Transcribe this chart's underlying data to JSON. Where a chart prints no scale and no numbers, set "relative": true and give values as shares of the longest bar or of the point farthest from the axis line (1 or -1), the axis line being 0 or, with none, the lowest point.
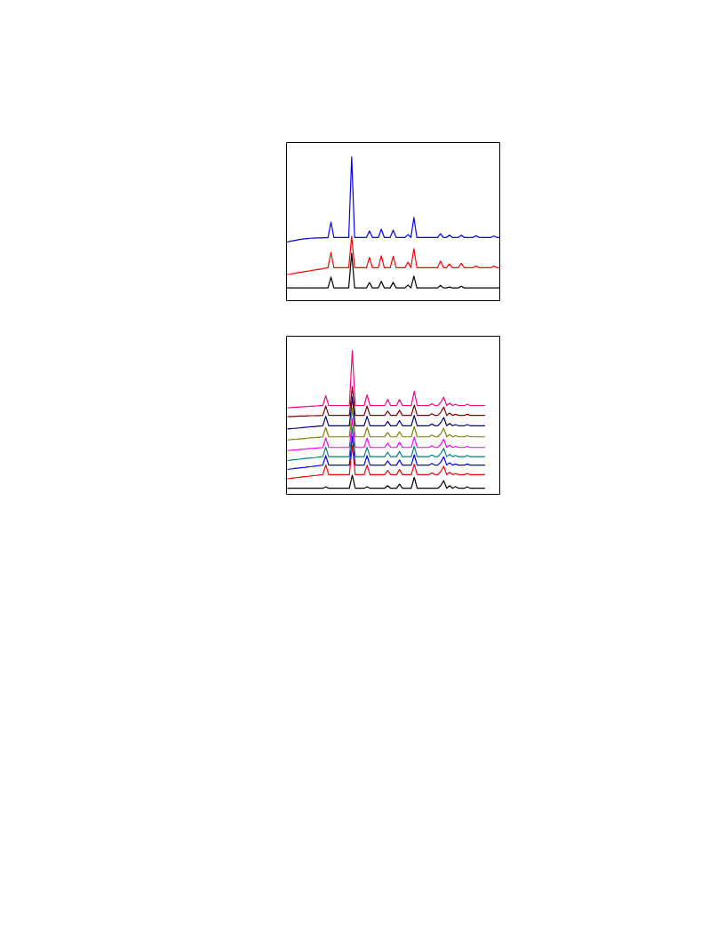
{
  "chart_data": [
    {
      "type": "line",
      "relative": true,
      "categories": [
        null,
        null,
        null,
        null,
        null,
        null,
        null,
        null,
        null,
        null,
        null,
        null,
        null,
        null,
        null,
        null,
        null,
        null,
        null,
        null,
        null,
        null,
        null,
        null,
        null,
        null,
        null,
        null,
        null,
        null,
        null,
        null,
        null,
        null,
        null,
        null,
        null,
        null,
        null,
        null,
        null,
        null,
        null,
        null,
        null,
        null,
        null,
        null,
        null,
        null,
        null,
        null,
        null,
        null,
        null,
        null,
        null,
        null,
        null,
        null,
        null,
        null,
        null,
        null,
        null,
        null,
        null,
        null,
        null,
        null,
        null,
        null,
        null
      ],
      "series": [
        {
          "color": "#000000",
          "values": [
            0.089,
            0.089,
            0.089,
            0.089,
            0.089,
            0.089,
            0.089,
            0.089,
            0.089,
            0.089,
            0.089,
            0.089,
            0.089,
            0.089,
            0.089,
            0.165,
            0.089,
            0.089,
            0.089,
            0.089,
            0.089,
            0.089,
            0.332,
            0.089,
            0.089,
            0.089,
            0.089,
            0.089,
            0.126,
            0.089,
            0.089,
            0.089,
            0.134,
            0.089,
            0.089,
            0.089,
            0.128,
            0.089,
            0.089,
            0.089,
            0.089,
            0.109,
            0.089,
            0.171,
            0.089,
            0.089,
            0.089,
            0.089,
            0.089,
            0.089,
            0.089,
            0.089,
            0.107,
            0.089,
            0.089,
            0.095,
            0.089,
            0.089,
            0.089,
            0.1,
            0.089,
            0.089,
            0.089,
            0.089,
            0.089,
            0.089,
            0.089,
            0.089,
            0.089,
            0.089,
            0.089,
            0.089,
            0.089
          ]
        },
        {
          "color": "#ff0000",
          "values": [
            0.181,
            0.184,
            0.188,
            0.191,
            0.195,
            0.198,
            0.202,
            0.205,
            0.208,
            0.212,
            0.215,
            0.219,
            0.222,
            0.226,
            0.229,
            0.336,
            0.23,
            0.23,
            0.23,
            0.23,
            0.23,
            0.23,
            0.449,
            0.23,
            0.23,
            0.23,
            0.23,
            0.23,
            0.301,
            0.23,
            0.23,
            0.23,
            0.313,
            0.23,
            0.23,
            0.23,
            0.309,
            0.23,
            0.23,
            0.23,
            0.23,
            0.268,
            0.23,
            0.363,
            0.23,
            0.23,
            0.23,
            0.23,
            0.23,
            0.23,
            0.23,
            0.23,
            0.276,
            0.23,
            0.23,
            0.256,
            0.23,
            0.23,
            0.23,
            0.26,
            0.23,
            0.23,
            0.23,
            0.23,
            0.24,
            0.23,
            0.23,
            0.23,
            0.23,
            0.23,
            0.24,
            0.23,
            0.23
          ]
        },
        {
          "color": "#0000ff",
          "values": [
            0.408,
            0.412,
            0.416,
            0.42,
            0.424,
            0.427,
            0.43,
            0.432,
            0.434,
            0.435,
            0.436,
            0.437,
            0.437,
            0.438,
            0.438,
            0.546,
            0.44,
            0.44,
            0.44,
            0.44,
            0.44,
            0.44,
            1,
            0.44,
            0.44,
            0.44,
            0.44,
            0.44,
            0.485,
            0.44,
            0.44,
            0.44,
            0.497,
            0.44,
            0.44,
            0.44,
            0.491,
            0.44,
            0.44,
            0.44,
            0.44,
            0.46,
            0.44,
            0.579,
            0.44,
            0.44,
            0.44,
            0.44,
            0.44,
            0.44,
            0.44,
            0.44,
            0.466,
            0.44,
            0.44,
            0.456,
            0.44,
            0.44,
            0.44,
            0.456,
            0.44,
            0.44,
            0.44,
            0.44,
            0.452,
            0.44,
            0.44,
            0.44,
            0.44,
            0.44,
            0.45,
            0.44,
            0.44
          ]
        }
      ]
    },
    {
      "type": "line",
      "relative": true,
      "categories": [
        null,
        null,
        null,
        null,
        null,
        null,
        null,
        null,
        null,
        null,
        null,
        null,
        null,
        null,
        null,
        null,
        null,
        null,
        null,
        null,
        null,
        null,
        null,
        null,
        null,
        null,
        null,
        null,
        null,
        null,
        null,
        null,
        null,
        null,
        null,
        null,
        null,
        null,
        null,
        null,
        null,
        null,
        null,
        null,
        null,
        null,
        null,
        null,
        null,
        null,
        null,
        null,
        null,
        null,
        null,
        null,
        null,
        null,
        null,
        null,
        null,
        null,
        null,
        null,
        null,
        null,
        null,
        null
      ],
      "series": [
        {
          "color": "#000000",
          "values": [
            0.042,
            0.042,
            0.042,
            0.042,
            0.042,
            0.042,
            0.042,
            0.042,
            0.042,
            0.042,
            0.042,
            0.042,
            0.042,
            0.052,
            0.042,
            0.042,
            0.042,
            0.042,
            0.042,
            0.042,
            0.042,
            0.042,
            0.133,
            0.042,
            0.042,
            0.042,
            0.042,
            0.052,
            0.042,
            0.042,
            0.042,
            0.042,
            0.042,
            0.042,
            0.06,
            0.042,
            0.042,
            0.042,
            0.07,
            0.042,
            0.042,
            0.042,
            0.042,
            0.119,
            0.042,
            0.042,
            0.042,
            0.042,
            0.042,
            0.042,
            0.042,
            0.042,
            0.06,
            0.095,
            0.042,
            0.06,
            0.042,
            0.054,
            0.042,
            0.042,
            0.042,
            0.052,
            0.042,
            0.042,
            0.042,
            0.042,
            0.042,
            0.042
          ]
        },
        {
          "color": "#ff0000",
          "values": [
            0.109,
            0.111,
            0.114,
            0.116,
            0.118,
            0.121,
            0.123,
            0.125,
            0.128,
            0.13,
            0.132,
            0.135,
            0.137,
            0.203,
            0.137,
            0.137,
            0.137,
            0.137,
            0.137,
            0.137,
            0.137,
            0.137,
            0.337,
            0.137,
            0.137,
            0.137,
            0.137,
            0.203,
            0.137,
            0.137,
            0.137,
            0.137,
            0.137,
            0.137,
            0.167,
            0.137,
            0.137,
            0.137,
            0.173,
            0.137,
            0.137,
            0.137,
            0.137,
            0.209,
            0.137,
            0.137,
            0.137,
            0.137,
            0.137,
            0.149,
            0.137,
            0.137,
            0.159,
            0.195,
            0.137,
            0.153,
            0.137,
            0.145,
            0.137,
            0.137,
            0.137,
            0.145,
            0.137,
            0.137,
            0.137,
            0.137,
            0.137,
            0.137
          ]
        },
        {
          "color": "#0000ff",
          "values": [
            0.173,
            0.176,
            0.178,
            0.181,
            0.183,
            0.186,
            0.188,
            0.191,
            0.193,
            0.196,
            0.198,
            0.201,
            0.203,
            0.269,
            0.203,
            0.203,
            0.203,
            0.203,
            0.203,
            0.203,
            0.203,
            0.203,
            0.403,
            0.203,
            0.203,
            0.203,
            0.203,
            0.269,
            0.203,
            0.203,
            0.203,
            0.203,
            0.203,
            0.203,
            0.233,
            0.203,
            0.203,
            0.203,
            0.239,
            0.203,
            0.203,
            0.203,
            0.203,
            0.275,
            0.203,
            0.203,
            0.203,
            0.203,
            0.203,
            0.215,
            0.203,
            0.203,
            0.225,
            0.261,
            0.203,
            0.219,
            0.203,
            0.211,
            0.203,
            0.203,
            0.203,
            0.211,
            0.203,
            0.203,
            0.203,
            0.203,
            0.203,
            0.203
          ]
        },
        {
          "color": "#008080",
          "values": [
            0.235,
            0.237,
            0.24,
            0.242,
            0.244,
            0.246,
            0.249,
            0.251,
            0.253,
            0.255,
            0.258,
            0.26,
            0.262,
            0.328,
            0.262,
            0.262,
            0.262,
            0.262,
            0.262,
            0.262,
            0.262,
            0.262,
            0.462,
            0.262,
            0.262,
            0.262,
            0.262,
            0.328,
            0.262,
            0.262,
            0.262,
            0.262,
            0.262,
            0.262,
            0.292,
            0.262,
            0.262,
            0.262,
            0.298,
            0.262,
            0.262,
            0.262,
            0.262,
            0.334,
            0.262,
            0.262,
            0.262,
            0.262,
            0.262,
            0.274,
            0.262,
            0.262,
            0.284,
            0.32,
            0.262,
            0.278,
            0.262,
            0.27,
            0.262,
            0.262,
            0.262,
            0.27,
            0.262,
            0.262,
            0.262,
            0.262,
            0.262,
            0.262
          ]
        },
        {
          "color": "#ff00ff",
          "values": [
            0.304,
            0.306,
            0.308,
            0.309,
            0.311,
            0.313,
            0.315,
            0.317,
            0.319,
            0.32,
            0.322,
            0.324,
            0.326,
            0.392,
            0.326,
            0.326,
            0.326,
            0.326,
            0.326,
            0.326,
            0.326,
            0.326,
            0.526,
            0.326,
            0.326,
            0.326,
            0.326,
            0.392,
            0.326,
            0.326,
            0.326,
            0.326,
            0.326,
            0.326,
            0.356,
            0.326,
            0.326,
            0.326,
            0.362,
            0.326,
            0.326,
            0.326,
            0.326,
            0.398,
            0.326,
            0.326,
            0.326,
            0.326,
            0.326,
            0.338,
            0.326,
            0.326,
            0.348,
            0.384,
            0.326,
            0.342,
            0.326,
            0.334,
            0.326,
            0.326,
            0.326,
            0.334,
            0.326,
            0.326,
            0.326,
            0.326,
            0.326,
            0.326
          ]
        },
        {
          "color": "#808000",
          "values": [
            0.378,
            0.38,
            0.382,
            0.383,
            0.385,
            0.387,
            0.389,
            0.391,
            0.393,
            0.394,
            0.396,
            0.398,
            0.4,
            0.466,
            0.4,
            0.4,
            0.4,
            0.4,
            0.4,
            0.4,
            0.4,
            0.4,
            0.6,
            0.4,
            0.4,
            0.4,
            0.4,
            0.466,
            0.4,
            0.4,
            0.4,
            0.4,
            0.4,
            0.4,
            0.43,
            0.4,
            0.4,
            0.4,
            0.436,
            0.4,
            0.4,
            0.4,
            0.4,
            0.472,
            0.4,
            0.4,
            0.4,
            0.4,
            0.4,
            0.412,
            0.4,
            0.4,
            0.422,
            0.458,
            0.4,
            0.416,
            0.4,
            0.408,
            0.4,
            0.4,
            0.4,
            0.408,
            0.4,
            0.4,
            0.4,
            0.4,
            0.4,
            0.4
          ]
        },
        {
          "color": "#000080",
          "values": [
            0.455,
            0.457,
            0.459,
            0.46,
            0.462,
            0.464,
            0.466,
            0.468,
            0.47,
            0.471,
            0.473,
            0.475,
            0.477,
            0.543,
            0.477,
            0.477,
            0.477,
            0.477,
            0.477,
            0.477,
            0.477,
            0.477,
            0.677,
            0.477,
            0.477,
            0.477,
            0.477,
            0.543,
            0.477,
            0.477,
            0.477,
            0.477,
            0.477,
            0.477,
            0.507,
            0.477,
            0.477,
            0.477,
            0.513,
            0.477,
            0.477,
            0.477,
            0.477,
            0.549,
            0.477,
            0.477,
            0.477,
            0.477,
            0.477,
            0.489,
            0.477,
            0.477,
            0.499,
            0.535,
            0.477,
            0.493,
            0.477,
            0.485,
            0.477,
            0.477,
            0.477,
            0.485,
            0.477,
            0.477,
            0.477,
            0.477,
            0.477,
            0.477
          ]
        },
        {
          "color": "#800000",
          "values": [
            0.54,
            0.541,
            0.542,
            0.543,
            0.544,
            0.544,
            0.545,
            0.546,
            0.547,
            0.547,
            0.548,
            0.548,
            0.549,
            0.615,
            0.549,
            0.549,
            0.549,
            0.549,
            0.549,
            0.549,
            0.549,
            0.549,
            0.749,
            0.549,
            0.549,
            0.549,
            0.549,
            0.615,
            0.549,
            0.549,
            0.549,
            0.549,
            0.549,
            0.549,
            0.579,
            0.549,
            0.549,
            0.549,
            0.585,
            0.549,
            0.549,
            0.549,
            0.549,
            0.621,
            0.549,
            0.549,
            0.549,
            0.549,
            0.549,
            0.561,
            0.549,
            0.549,
            0.571,
            0.607,
            0.549,
            0.565,
            0.549,
            0.557,
            0.549,
            0.549,
            0.549,
            0.557,
            0.549,
            0.549,
            0.549,
            0.549,
            0.549,
            0.549
          ]
        },
        {
          "color": "#ff0080",
          "values": [
            0.602,
            0.603,
            0.605,
            0.606,
            0.607,
            0.609,
            0.61,
            0.611,
            0.613,
            0.614,
            0.615,
            0.617,
            0.618,
            0.686,
            0.618,
            0.618,
            0.618,
            0.618,
            0.618,
            0.618,
            0.618,
            0.618,
            1,
            0.618,
            0.618,
            0.618,
            0.618,
            0.692,
            0.618,
            0.618,
            0.618,
            0.618,
            0.618,
            0.618,
            0.66,
            0.618,
            0.618,
            0.618,
            0.66,
            0.618,
            0.618,
            0.618,
            0.618,
            0.716,
            0.618,
            0.618,
            0.618,
            0.618,
            0.618,
            0.63,
            0.618,
            0.618,
            0.64,
            0.676,
            0.618,
            0.634,
            0.618,
            0.626,
            0.618,
            0.618,
            0.618,
            0.626,
            0.618,
            0.618,
            0.618,
            0.618,
            0.618,
            0.618
          ]
        }
      ]
    }
  ]
}
